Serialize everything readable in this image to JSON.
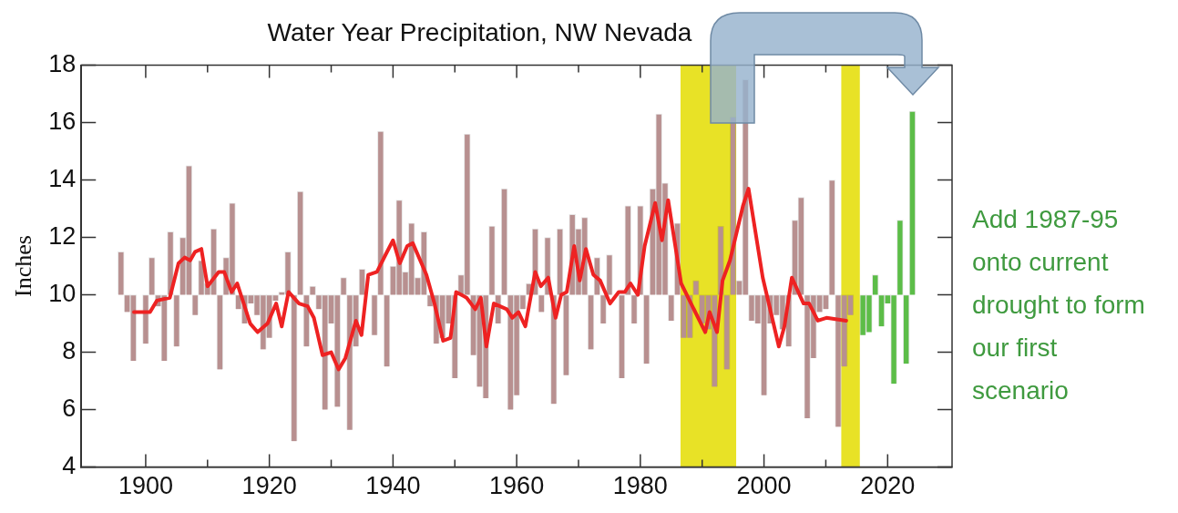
{
  "chart_data": {
    "type": "bar",
    "title": "Water Year Precipitation, NW Nevada",
    "ylabel": "Inches",
    "xlim": [
      1895,
      2025
    ],
    "xticks": [
      1900,
      {
        "value": 1910,
        "label": null
      },
      1920,
      {
        "value": 1930,
        "label": null
      },
      1940,
      {
        "value": 1950,
        "label": null
      },
      1960,
      {
        "value": 1970,
        "label": null
      },
      1980,
      {
        "value": 1990,
        "label": null
      },
      2000,
      {
        "value": 2010,
        "label": null
      },
      2020
    ],
    "ylim": [
      4,
      18
    ],
    "yticks": [
      4,
      6,
      8,
      10,
      12,
      14,
      16,
      18
    ],
    "grid": false,
    "legend": false,
    "bands": [
      {
        "axis": "x",
        "from": 1986.5,
        "to": 1995.5,
        "color": "#e8e226"
      },
      {
        "axis": "x",
        "from": 2012.5,
        "to": 2015.5,
        "color": "#e8e226"
      }
    ],
    "annotations": [
      "Add 1987-95 onto current drought to form our first scenario"
    ],
    "series": [
      {
        "color": "#b89090",
        "x": [
          1896,
          1897,
          1898,
          1899,
          1900,
          1901,
          1902,
          1903,
          1904,
          1905,
          1906,
          1907,
          1908,
          1909,
          1910,
          1911,
          1912,
          1913,
          1914,
          1915,
          1916,
          1917,
          1918,
          1919,
          1920,
          1921,
          1922,
          1923,
          1924,
          1925,
          1926,
          1927,
          1928,
          1929,
          1930,
          1931,
          1932,
          1933,
          1934,
          1935,
          1936,
          1937,
          1938,
          1939,
          1940,
          1941,
          1942,
          1943,
          1944,
          1945,
          1946,
          1947,
          1948,
          1949,
          1950,
          1951,
          1952,
          1953,
          1954,
          1955,
          1956,
          1957,
          1958,
          1959,
          1960,
          1961,
          1962,
          1963,
          1964,
          1965,
          1966,
          1967,
          1968,
          1969,
          1970,
          1971,
          1972,
          1973,
          1974,
          1975,
          1976,
          1977,
          1978,
          1979,
          1980,
          1981,
          1982,
          1983,
          1984,
          1985,
          1986,
          1987,
          1988,
          1989,
          1990,
          1991,
          1992,
          1993,
          1994,
          1995,
          1996,
          1997,
          1998,
          1999,
          2000,
          2001,
          2002,
          2003,
          2004,
          2005,
          2006,
          2007,
          2008,
          2009,
          2010,
          2011,
          2012,
          2013,
          2014
        ],
        "base": [
          10,
          10,
          10,
          null,
          10,
          10,
          10,
          10,
          10,
          10,
          10,
          10,
          10,
          10,
          10,
          10,
          10,
          10,
          10,
          10,
          10,
          10,
          10,
          10,
          10,
          10,
          10,
          10,
          10,
          10,
          10,
          10,
          10,
          10,
          10,
          10,
          10,
          10,
          10,
          10,
          null,
          10,
          10,
          10,
          10,
          10,
          10,
          10,
          10,
          10,
          10,
          10,
          10,
          10,
          10,
          10,
          10,
          10,
          10,
          10,
          10,
          10,
          10,
          10,
          10,
          10,
          10,
          10,
          10,
          10,
          10,
          10,
          10,
          10,
          10,
          10,
          10,
          10,
          10,
          10,
          null,
          10,
          10,
          10,
          10,
          10,
          10,
          10,
          10,
          10,
          10,
          10,
          10,
          10,
          10,
          10,
          10,
          10,
          10,
          10,
          10,
          10,
          10,
          10,
          10,
          10,
          10,
          10,
          10,
          10,
          10,
          10,
          10,
          10,
          10,
          10,
          10,
          10,
          10
        ],
        "values": [
          1.5,
          -0.6,
          -2.3,
          null,
          -1.7,
          1.3,
          -0.4,
          -2.3,
          2.2,
          -1.8,
          2.0,
          4.5,
          -0.7,
          1.2,
          0.4,
          2.3,
          -2.6,
          1.3,
          3.2,
          -0.5,
          -1.0,
          -0.3,
          -0.7,
          -1.9,
          -1.5,
          -0.2,
          0.1,
          1.5,
          -5.1,
          3.6,
          -1.8,
          0.3,
          -0.5,
          -4.0,
          -1.0,
          -3.9,
          0.6,
          -4.7,
          -1.8,
          0.9,
          null,
          -1.4,
          5.7,
          -2.5,
          1.0,
          3.3,
          0.8,
          2.5,
          0.6,
          2.2,
          -0.4,
          -1.7,
          -1.5,
          -1.0,
          -2.9,
          0.7,
          5.6,
          -2.1,
          -3.2,
          -3.6,
          2.4,
          -1.0,
          3.7,
          -4.0,
          -3.5,
          -0.5,
          0.4,
          2.3,
          -0.6,
          2.0,
          -3.8,
          2.3,
          -2.8,
          2.8,
          2.3,
          2.7,
          -1.9,
          1.3,
          -1.0,
          1.4,
          null,
          -2.9,
          3.1,
          -1.0,
          3.1,
          -2.4,
          3.7,
          6.3,
          3.9,
          -0.9,
          2.5,
          -1.5,
          -1.5,
          0.5,
          -1.0,
          -1.2,
          -3.2,
          2.4,
          -2.6,
          6.2,
          0.5,
          7.5,
          -0.9,
          -1.0,
          -3.5,
          -1.0,
          -0.7,
          -1.2,
          -1.8,
          2.6,
          3.4,
          -4.3,
          -2.2,
          -0.6,
          -0.5,
          4.0,
          -4.6,
          -2.5,
          -0.7
        ]
      },
      {
        "color": "#5cbd48",
        "x": [
          2016,
          2017,
          2018,
          2019,
          2020,
          2021,
          2022,
          2023,
          2024
        ],
        "base": [
          10,
          10,
          10,
          10,
          10,
          10,
          10,
          10,
          10
        ],
        "values": [
          -1.4,
          -1.3,
          0.7,
          -1.1,
          -0.3,
          -3.1,
          2.6,
          -2.4,
          6.4
        ]
      },
      {
        "type": "line",
        "color": "#ee2222",
        "x": [
          1898.1,
          1900.7,
          1901.8,
          1903.9,
          1905.3,
          1906.3,
          1907.2,
          1908,
          1909,
          1910,
          1911.8,
          1912.7,
          1913.9,
          1914.8,
          1916.9,
          1918.1,
          1919.7,
          1921.1,
          1922,
          1923.1,
          1924.8,
          1926.2,
          1927.2,
          1928.6,
          1930,
          1931.2,
          1932.3,
          1934,
          1934.9,
          1936,
          1937.4,
          1938.8,
          1940,
          1941.1,
          1942.3,
          1943.2,
          1945.4,
          1946.7,
          1948.1,
          1949.3,
          1950.2,
          1951.9,
          1953.3,
          1954.2,
          1955.1,
          1956.3,
          1958.4,
          1959.3,
          1960.3,
          1961.4,
          1963,
          1963.9,
          1965.1,
          1966.3,
          1967.2,
          1968.1,
          1969.3,
          1970.2,
          1971.2,
          1972.4,
          1973.5,
          1975.1,
          1976.5,
          1977.5,
          1978.4,
          1979.6,
          1980.7,
          1982.4,
          1983.5,
          1984.5,
          1986.6,
          1988.2,
          1990.5,
          1991.2,
          1992.4,
          1993.3,
          1994.5,
          1996.6,
          1997.5,
          1999.8,
          2002.4,
          2003.3,
          2004.5,
          2006.4,
          2007.3,
          2008.7,
          2010.1,
          2013.3
        ],
        "values": [
          9.4,
          9.4,
          9.8,
          9.9,
          11.1,
          11.3,
          11.2,
          11.5,
          11.6,
          10.3,
          10.8,
          10.8,
          10.1,
          10.4,
          9.0,
          8.7,
          9.0,
          9.7,
          8.9,
          10.1,
          9.7,
          9.6,
          9.2,
          7.9,
          8.0,
          7.4,
          7.8,
          9.1,
          8.6,
          10.7,
          10.8,
          11.4,
          11.9,
          11.1,
          11.7,
          11.8,
          10.7,
          9.7,
          8.4,
          8.5,
          10.1,
          9.9,
          9.5,
          9.9,
          8.2,
          9.7,
          9.5,
          9.2,
          9.4,
          8.9,
          10.8,
          10.3,
          10.6,
          9.2,
          10.0,
          10.1,
          11.7,
          10.5,
          11.6,
          10.7,
          10.5,
          9.7,
          10.1,
          10.1,
          10.4,
          10.0,
          11.7,
          13.2,
          11.9,
          13.3,
          10.4,
          9.7,
          8.7,
          9.4,
          8.7,
          10.5,
          11.2,
          13.1,
          13.7,
          10.6,
          8.2,
          8.9,
          10.6,
          9.7,
          9.7,
          9.1,
          9.2,
          9.1
        ]
      }
    ]
  }
}
